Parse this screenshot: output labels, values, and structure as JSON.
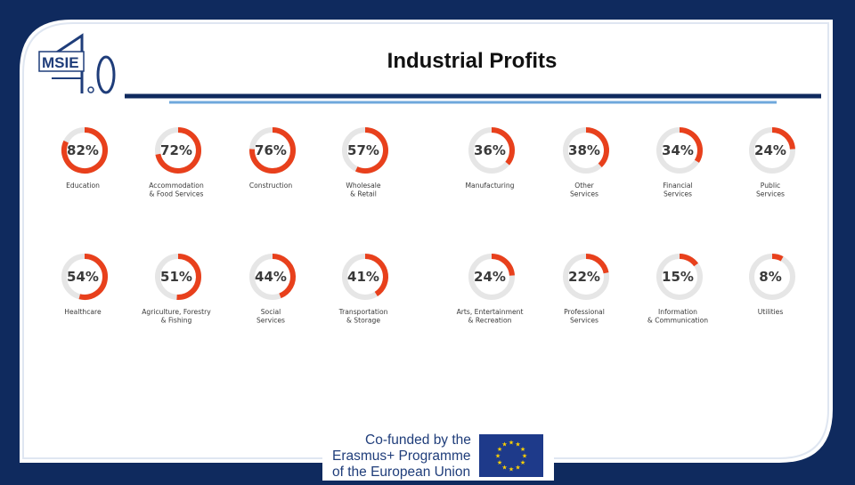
{
  "slide": {
    "title": "Industrial Profits"
  },
  "logo": {
    "text": "MSIE 4.0",
    "brand_color": "#1f3d7a"
  },
  "colors": {
    "frame": "#0f2a5e",
    "accent": "#e8401c",
    "ring_track": "#e6e6e6",
    "underline_blue": "#6fa8dc",
    "eu_blue": "#1e3a8a",
    "eu_star": "#ffd200"
  },
  "chart_data": {
    "type": "donut",
    "title": "Industrial Profits",
    "unit": "%",
    "items": [
      {
        "value": 82,
        "label": "82%",
        "category": [
          "Education"
        ]
      },
      {
        "value": 72,
        "label": "72%",
        "category": [
          "Accommodation",
          "& Food Services"
        ]
      },
      {
        "value": 76,
        "label": "76%",
        "category": [
          "Construction"
        ]
      },
      {
        "value": 57,
        "label": "57%",
        "category": [
          "Wholesale",
          "& Retail"
        ]
      },
      {
        "value": 36,
        "label": "36%",
        "category": [
          "Manufacturing"
        ]
      },
      {
        "value": 38,
        "label": "38%",
        "category": [
          "Other",
          "Services"
        ]
      },
      {
        "value": 34,
        "label": "34%",
        "category": [
          "Financial",
          "Services"
        ]
      },
      {
        "value": 24,
        "label": "24%",
        "category": [
          "Public",
          "Services"
        ]
      },
      {
        "value": 54,
        "label": "54%",
        "category": [
          "Healthcare"
        ]
      },
      {
        "value": 51,
        "label": "51%",
        "category": [
          "Agriculture, Forestry",
          "& Fishing"
        ]
      },
      {
        "value": 44,
        "label": "44%",
        "category": [
          "Social",
          "Services"
        ]
      },
      {
        "value": 41,
        "label": "41%",
        "category": [
          "Transportation",
          "& Storage"
        ]
      },
      {
        "value": 24,
        "label": "24%",
        "category": [
          "Arts, Entertainment",
          "& Recreation"
        ]
      },
      {
        "value": 22,
        "label": "22%",
        "category": [
          "Professional",
          "Services"
        ]
      },
      {
        "value": 15,
        "label": "15%",
        "category": [
          "Information",
          "& Communication"
        ]
      },
      {
        "value": 8,
        "label": "8%",
        "category": [
          "Utilities"
        ]
      }
    ]
  },
  "footer": {
    "line1": "Co-funded by the",
    "line2": "Erasmus+ Programme",
    "line3": "of the European Union",
    "flag_icon": "eu-flag-icon"
  }
}
